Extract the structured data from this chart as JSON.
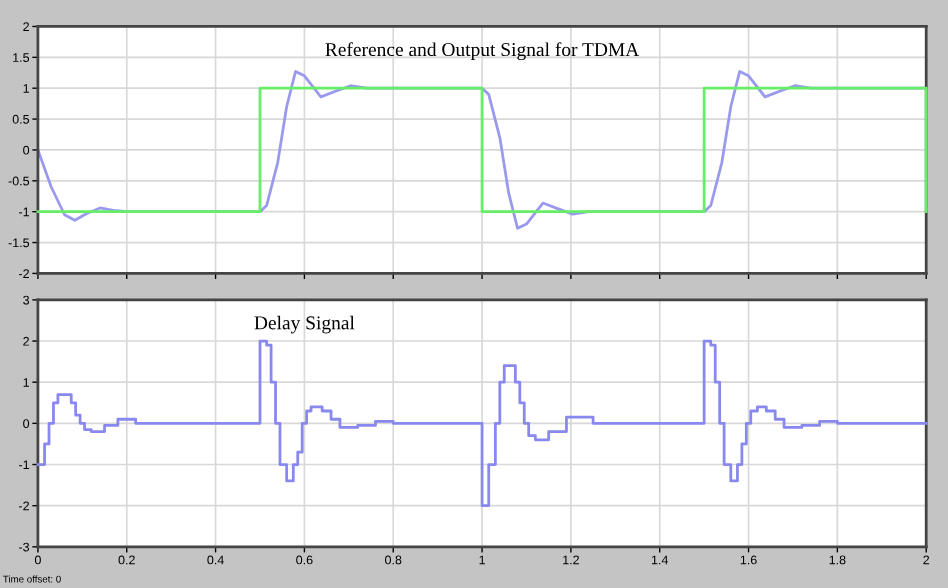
{
  "chart_data": [
    {
      "type": "line",
      "title": "Reference and Output Signal for TDMA",
      "xlim": [
        0,
        2
      ],
      "ylim": [
        -2,
        2
      ],
      "xticks": [
        0,
        0.2,
        0.4,
        0.6,
        0.8,
        1,
        1.2,
        1.4,
        1.6,
        1.8,
        2
      ],
      "yticks": [
        -2,
        -1.5,
        -1,
        -0.5,
        0,
        0.5,
        1,
        1.5,
        2
      ],
      "tick_labels": "y",
      "grid": true,
      "series": [
        {
          "type": "step",
          "color": "#66ee66",
          "x": [
            0,
            0.5,
            1,
            1.5,
            2
          ],
          "values": [
            -1,
            1,
            -1,
            1,
            -1
          ]
        },
        {
          "color": "#9999ee",
          "x": [
            0,
            0.03,
            0.06,
            0.083,
            0.11,
            0.14,
            0.17,
            0.2,
            0.5,
            0.515,
            0.54,
            0.56,
            0.58,
            0.6,
            0.637,
            0.67,
            0.704,
            0.74,
            1.0,
            1.015,
            1.04,
            1.06,
            1.08,
            1.1,
            1.137,
            1.17,
            1.204,
            1.24,
            1.5,
            1.515,
            1.54,
            1.56,
            1.58,
            1.6,
            1.637,
            1.67,
            1.704,
            1.74,
            2.0
          ],
          "values": [
            0,
            -0.6,
            -1.05,
            -1.14,
            -1.03,
            -0.94,
            -0.98,
            -1.0,
            -1.0,
            -0.9,
            -0.2,
            0.7,
            1.27,
            1.2,
            0.86,
            0.95,
            1.04,
            1.0,
            1.0,
            0.9,
            0.2,
            -0.7,
            -1.27,
            -1.2,
            -0.86,
            -0.95,
            -1.04,
            -1.0,
            -1.0,
            -0.9,
            -0.2,
            0.7,
            1.27,
            1.2,
            0.86,
            0.95,
            1.04,
            1.0,
            1.0
          ]
        }
      ]
    },
    {
      "type": "step",
      "title": "Delay Signal",
      "xlim": [
        0,
        2
      ],
      "ylim": [
        -3,
        3
      ],
      "xticks": [
        0,
        0.2,
        0.4,
        0.6,
        0.8,
        1,
        1.2,
        1.4,
        1.6,
        1.8,
        2
      ],
      "yticks": [
        -3,
        -2,
        -1,
        0,
        1,
        2,
        3
      ],
      "grid": true,
      "annotations": [
        "Time offset: 0"
      ],
      "series": [
        {
          "color": "#8888ee",
          "x": [
            0,
            0.015,
            0.025,
            0.035,
            0.045,
            0.06,
            0.075,
            0.085,
            0.095,
            0.105,
            0.12,
            0.15,
            0.18,
            0.22,
            0.5,
            0.515,
            0.525,
            0.535,
            0.545,
            0.56,
            0.575,
            0.585,
            0.595,
            0.605,
            0.615,
            0.625,
            0.64,
            0.66,
            0.68,
            0.72,
            0.76,
            0.8,
            1.0,
            1.015,
            1.03,
            1.04,
            1.05,
            1.06,
            1.075,
            1.085,
            1.095,
            1.105,
            1.12,
            1.15,
            1.19,
            1.25,
            1.5,
            1.515,
            1.525,
            1.535,
            1.545,
            1.56,
            1.575,
            1.585,
            1.595,
            1.605,
            1.62,
            1.64,
            1.66,
            1.68,
            1.72,
            1.76,
            1.8,
            2.0
          ],
          "values": [
            -1,
            -0.5,
            0,
            0.5,
            0.7,
            0.7,
            0.5,
            0.2,
            0,
            -0.15,
            -0.2,
            -0.05,
            0.1,
            0,
            2,
            1.9,
            1,
            0,
            -1,
            -1.4,
            -1,
            -0.7,
            0,
            0.3,
            0.4,
            0.4,
            0.3,
            0.1,
            -0.1,
            -0.05,
            0.05,
            0,
            -2,
            -1,
            0,
            1,
            1.4,
            1.4,
            1,
            0.5,
            0,
            -0.3,
            -0.4,
            -0.2,
            0.15,
            0,
            2,
            1.9,
            1,
            0,
            -1,
            -1.4,
            -1,
            -0.5,
            0,
            0.3,
            0.4,
            0.3,
            0.1,
            -0.1,
            -0.05,
            0.05,
            0,
            0
          ]
        }
      ]
    }
  ]
}
